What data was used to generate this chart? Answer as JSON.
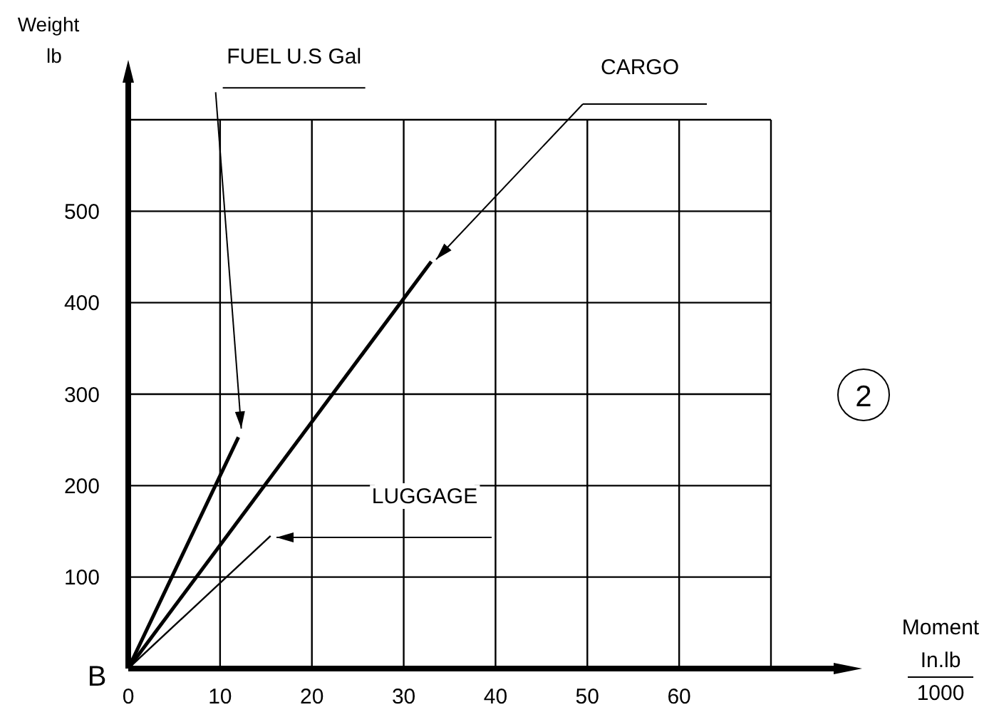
{
  "chart_data": {
    "type": "line",
    "ylabel": "Weight\nlb",
    "series": [
      {
        "color": "#000000",
        "x": [
          0,
          12
        ],
        "values": [
          0,
          253
        ]
      },
      {
        "color": "#000000",
        "x": [
          0,
          33
        ],
        "values": [
          0,
          445
        ]
      },
      {
        "color": "#000000",
        "x": [
          0,
          15.5
        ],
        "values": [
          0,
          145
        ]
      }
    ],
    "xlim": [
      0,
      70
    ],
    "ylim": [
      0,
      600
    ],
    "xticks": [
      0,
      10,
      20,
      30,
      40,
      50,
      60,
      {
        "value": 70,
        "label": null
      }
    ],
    "yticks": [
      {
        "value": 0,
        "label": null
      },
      100,
      200,
      300,
      400,
      500,
      {
        "value": 600,
        "label": null
      }
    ],
    "grid": true,
    "marker": "none",
    "line_style": "solid",
    "annotations": [
      {
        "text": "FUEL U.S Gal",
        "x": 12,
        "y": 253
      },
      "CARGO",
      "LUGGAGE",
      "B",
      "2",
      "Moment\nIn.lb\n1000"
    ]
  }
}
